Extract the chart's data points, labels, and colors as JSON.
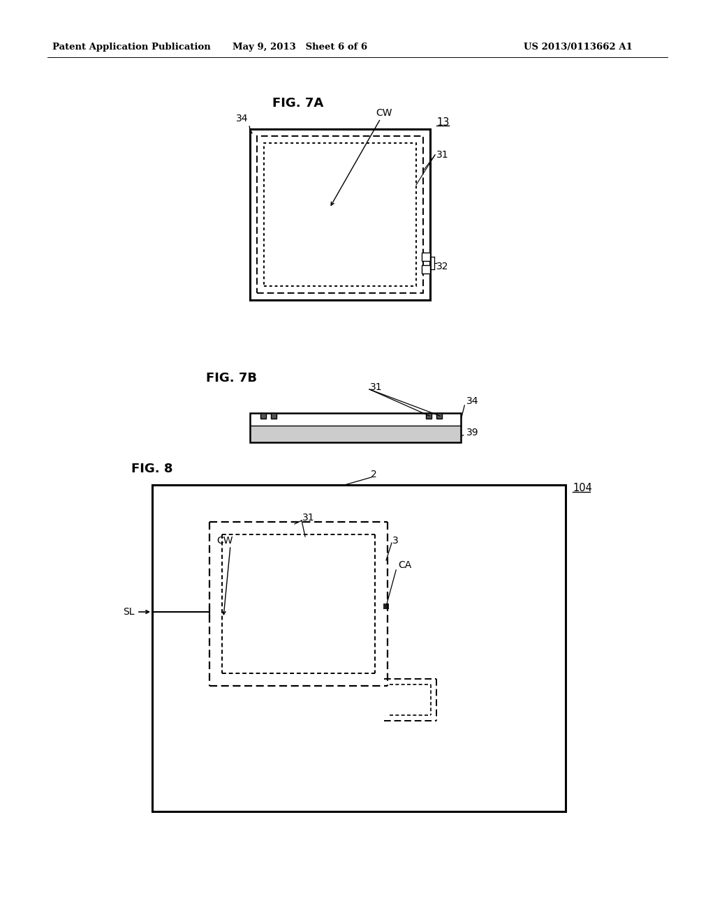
{
  "header_left": "Patent Application Publication",
  "header_mid": "May 9, 2013   Sheet 6 of 6",
  "header_right": "US 2013/0113662 A1",
  "fig7a_title": "FIG. 7A",
  "fig7b_title": "FIG. 7B",
  "fig8_title": "FIG. 8",
  "bg_color": "#ffffff",
  "lc": "#000000"
}
